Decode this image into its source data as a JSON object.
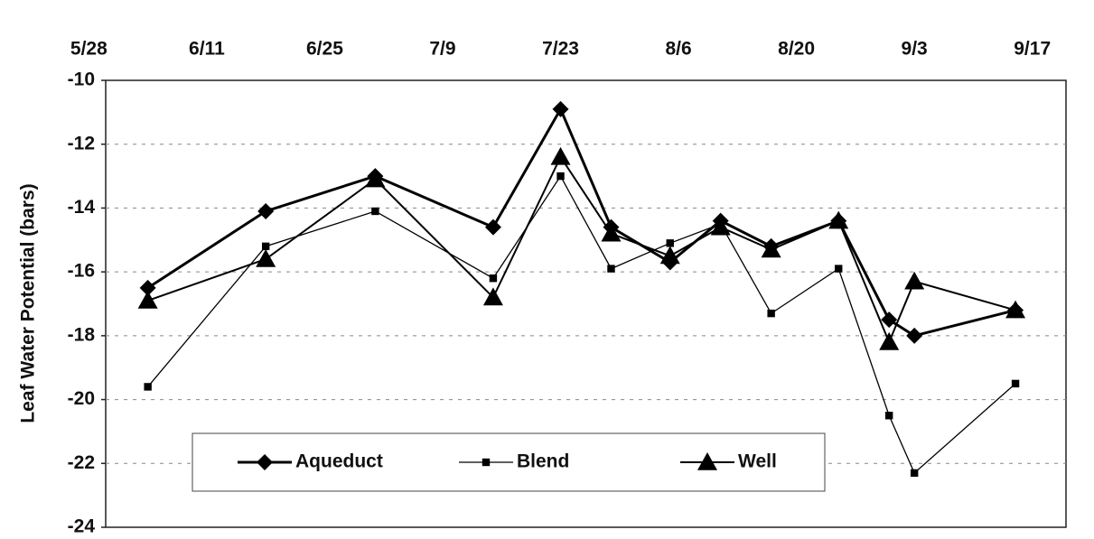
{
  "chart_data": {
    "type": "line",
    "y_label": "Leaf Water Potential (bars)",
    "x": [
      155,
      169,
      182,
      196,
      204,
      210,
      217,
      223,
      229,
      237,
      243,
      246,
      258
    ],
    "xlim": [
      150,
      264
    ],
    "xticks": [
      {
        "value": 148,
        "label": "5/28"
      },
      {
        "value": 162,
        "label": "6/11"
      },
      {
        "value": 176,
        "label": "6/25"
      },
      {
        "value": 190,
        "label": "7/9"
      },
      {
        "value": 204,
        "label": "7/23"
      },
      {
        "value": 218,
        "label": "8/6"
      },
      {
        "value": 232,
        "label": "8/20"
      },
      {
        "value": 246,
        "label": "9/3"
      },
      {
        "value": 260,
        "label": "9/17"
      }
    ],
    "ylim": [
      -24,
      -10
    ],
    "yticks": [
      -24,
      -22,
      -20,
      -18,
      -16,
      -14,
      -12,
      -10
    ],
    "grid": true,
    "legend": "bottom-left",
    "series": [
      {
        "name": "Aqueduct",
        "color": "#000000",
        "marker": "diamond",
        "values": [
          -16.5,
          -14.1,
          -13.0,
          -14.6,
          -10.9,
          -14.6,
          -15.7,
          -14.4,
          -15.2,
          -14.4,
          -17.5,
          -18.0,
          -17.2
        ]
      },
      {
        "name": "Blend",
        "color": "#000000",
        "marker": "square",
        "values": [
          -19.6,
          -15.2,
          -14.1,
          -16.2,
          -13.0,
          -15.9,
          -15.1,
          -14.5,
          -17.3,
          -15.9,
          -20.5,
          -22.3,
          -19.5
        ]
      },
      {
        "name": "Well",
        "color": "#000000",
        "marker": "triangle",
        "values": [
          -16.9,
          -15.6,
          -13.1,
          -16.8,
          -12.4,
          -14.8,
          -15.5,
          -14.6,
          -15.3,
          -14.4,
          -18.2,
          -16.3,
          -17.2
        ]
      }
    ]
  }
}
